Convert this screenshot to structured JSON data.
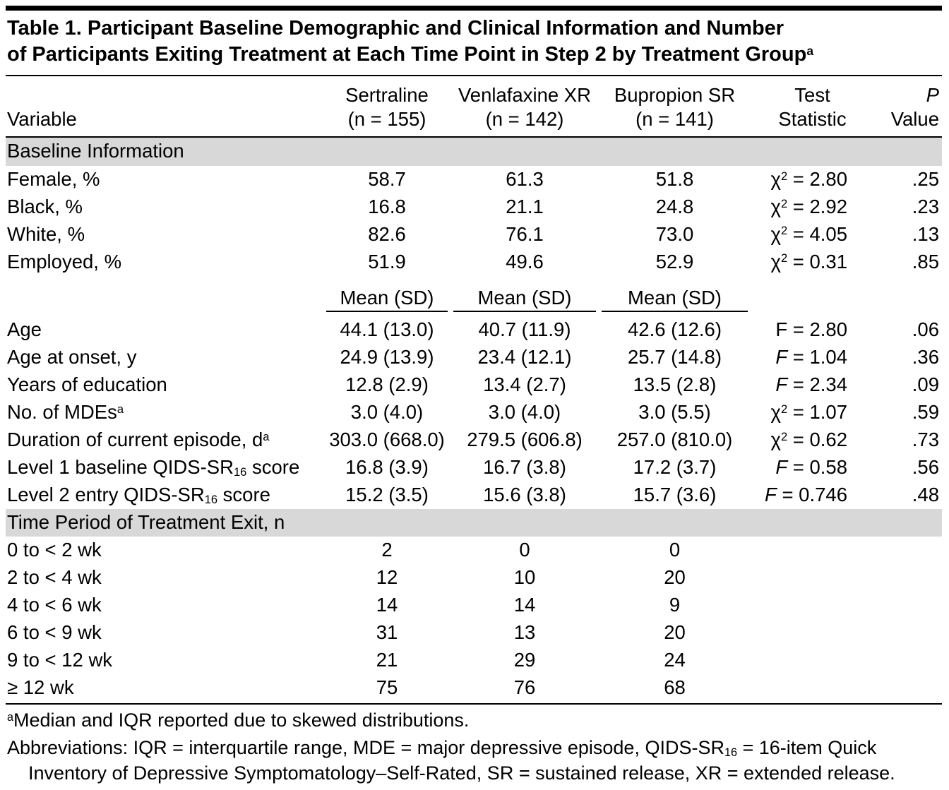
{
  "colors": {
    "section_band_bg": "#d8d8d8",
    "rule_color": "#000000",
    "text_color": "#000000",
    "page_bg": "#ffffff"
  },
  "table": {
    "title": {
      "lines": [
        [
          {
            "t": "Table 1. Participant Baseline Demographic and Clinical Information and Number"
          }
        ],
        [
          {
            "t": "of Participants Exiting Treatment at Each Time Point in Step 2 by Treatment Group"
          },
          {
            "t": "a",
            "s": "sup"
          }
        ]
      ]
    },
    "header": {
      "variable": "Variable",
      "groups": [
        {
          "line1": "Sertraline",
          "line2": "(n = 155)"
        },
        {
          "line1": "Venlafaxine XR",
          "line2": "(n = 142)"
        },
        {
          "line1": "Bupropion SR",
          "line2": "(n = 141)"
        }
      ],
      "test": {
        "line1": "Test",
        "line2": "Statistic"
      },
      "pvalue": [
        {
          "t": "P",
          "s": "i"
        },
        {
          "t": " Value"
        }
      ]
    },
    "rows": [
      {
        "type": "section",
        "label": "Baseline Information"
      },
      {
        "type": "data",
        "label": "Female, %",
        "values": [
          "58.7",
          "61.3",
          "51.8"
        ],
        "stat": [
          {
            "t": "χ"
          },
          {
            "t": "2",
            "s": "sup"
          },
          {
            "t": " = 2.80"
          }
        ],
        "p": ".25"
      },
      {
        "type": "data",
        "label": "Black, %",
        "values": [
          "16.8",
          "21.1",
          "24.8"
        ],
        "stat": [
          {
            "t": "χ"
          },
          {
            "t": "2",
            "s": "sup"
          },
          {
            "t": " = 2.92"
          }
        ],
        "p": ".23"
      },
      {
        "type": "data",
        "label": "White, %",
        "values": [
          "82.6",
          "76.1",
          "73.0"
        ],
        "stat": [
          {
            "t": "χ"
          },
          {
            "t": "2",
            "s": "sup"
          },
          {
            "t": " = 4.05"
          }
        ],
        "p": ".13"
      },
      {
        "type": "data",
        "label": "Employed, %",
        "values": [
          "51.9",
          "49.6",
          "52.9"
        ],
        "stat": [
          {
            "t": "χ"
          },
          {
            "t": "2",
            "s": "sup"
          },
          {
            "t": " = 0.31"
          }
        ],
        "p": ".85"
      },
      {
        "type": "subheader",
        "values": [
          "Mean (SD)",
          "Mean (SD)",
          "Mean (SD)"
        ]
      },
      {
        "type": "data",
        "label": "Age",
        "values": [
          "44.1 (13.0)",
          "40.7 (11.9)",
          "42.6 (12.6)"
        ],
        "stat": [
          {
            "t": "F = 2.80"
          }
        ],
        "p": ".06"
      },
      {
        "type": "data",
        "label": "Age at onset, y",
        "values": [
          "24.9 (13.9)",
          "23.4 (12.1)",
          "25.7 (14.8)"
        ],
        "stat": [
          {
            "t": "F",
            "s": "i"
          },
          {
            "t": " = 1.04"
          }
        ],
        "p": ".36"
      },
      {
        "type": "data",
        "label": "Years of education",
        "values": [
          "12.8 (2.9)",
          "13.4 (2.7)",
          "13.5 (2.8)"
        ],
        "stat": [
          {
            "t": "F",
            "s": "i"
          },
          {
            "t": " = 2.34"
          }
        ],
        "p": ".09"
      },
      {
        "type": "data",
        "label": [
          {
            "t": "No. of MDEs"
          },
          {
            "t": "a",
            "s": "sup"
          }
        ],
        "values": [
          "3.0 (4.0)",
          "3.0 (4.0)",
          "3.0 (5.5)"
        ],
        "stat": [
          {
            "t": "χ"
          },
          {
            "t": "2",
            "s": "sup"
          },
          {
            "t": " = 1.07"
          }
        ],
        "p": ".59"
      },
      {
        "type": "data",
        "label": [
          {
            "t": "Duration of current episode, d"
          },
          {
            "t": "a",
            "s": "sup"
          }
        ],
        "values": [
          "303.0 (668.0)",
          "279.5 (606.8)",
          "257.0 (810.0)"
        ],
        "stat": [
          {
            "t": "χ"
          },
          {
            "t": "2",
            "s": "sup"
          },
          {
            "t": " = 0.62"
          }
        ],
        "p": ".73"
      },
      {
        "type": "data",
        "label": [
          {
            "t": "Level 1 baseline QIDS-SR"
          },
          {
            "t": "16",
            "s": "sub"
          },
          {
            "t": " score"
          }
        ],
        "values": [
          "16.8 (3.9)",
          "16.7 (3.8)",
          "17.2 (3.7)"
        ],
        "stat": [
          {
            "t": "F",
            "s": "i"
          },
          {
            "t": " = 0.58"
          }
        ],
        "p": ".56"
      },
      {
        "type": "data",
        "label": [
          {
            "t": "Level 2 entry QIDS-SR"
          },
          {
            "t": "16",
            "s": "sub"
          },
          {
            "t": " score"
          }
        ],
        "values": [
          "15.2 (3.5)",
          "15.6 (3.8)",
          "15.7 (3.6)"
        ],
        "stat": [
          {
            "t": "F",
            "s": "i"
          },
          {
            "t": " = 0.746"
          }
        ],
        "p": ".48"
      },
      {
        "type": "section",
        "label": "Time Period of Treatment Exit, n"
      },
      {
        "type": "data",
        "label": "0 to < 2 wk",
        "values": [
          "2",
          "0",
          "0"
        ],
        "stat": null,
        "p": ""
      },
      {
        "type": "data",
        "label": "2 to < 4 wk",
        "values": [
          "12",
          "10",
          "20"
        ],
        "stat": null,
        "p": ""
      },
      {
        "type": "data",
        "label": "4 to < 6 wk",
        "values": [
          "14",
          "14",
          "9"
        ],
        "stat": null,
        "p": ""
      },
      {
        "type": "data",
        "label": "6 to < 9 wk",
        "values": [
          "31",
          "13",
          "20"
        ],
        "stat": null,
        "p": ""
      },
      {
        "type": "data",
        "label": "9 to < 12 wk",
        "values": [
          "21",
          "29",
          "24"
        ],
        "stat": null,
        "p": ""
      },
      {
        "type": "data",
        "label": "≥ 12 wk",
        "values": [
          "75",
          "76",
          "68"
        ],
        "stat": null,
        "p": ""
      }
    ],
    "footnotes": [
      [
        {
          "t": "a",
          "s": "sup"
        },
        {
          "t": "Median and IQR reported due to skewed distributions."
        }
      ],
      [
        {
          "t": "Abbreviations: IQR = interquartile range, MDE = major depressive episode, QIDS-SR"
        },
        {
          "t": "16",
          "s": "sub"
        },
        {
          "t": " = 16-item Quick Inventory of Depressive Symptomatology–Self-Rated, SR = sustained release, XR = extended release."
        }
      ]
    ]
  }
}
